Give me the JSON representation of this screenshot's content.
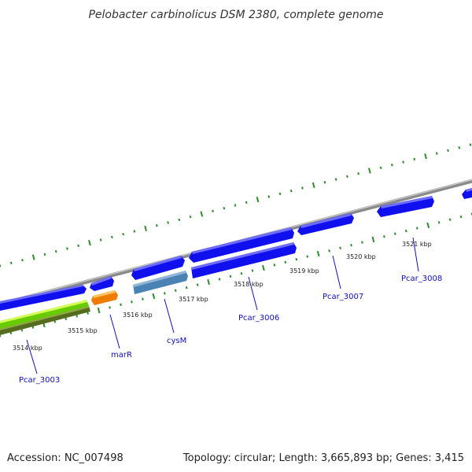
{
  "title": "Pelobacter carbinolicus DSM 2380, complete genome",
  "footer": {
    "accession": "Accession: NC_007498",
    "topology": "Topology: circular; Length: 3,665,893 bp; Genes: 3,415"
  },
  "colors": {
    "backbone": "#8a8a8a",
    "tick_green": "#2e8b2e",
    "gene_blue": "#1010ee",
    "gene_blue_top": "#6c6cff",
    "gene_steel": "#4a82b4",
    "gene_steel_top": "#8fb6d8",
    "gene_orange": "#ee7c00",
    "gene_orange_top": "#ffc060",
    "gene_lime": "#66cc00",
    "gene_lime_top": "#d6ff5a",
    "gene_olive": "#556b1e",
    "gene_olive_top": "#8fa844",
    "label_color": "#1010bb"
  },
  "kbp_labels": [
    "3514 kbp",
    "3515 kbp",
    "3516 kbp",
    "3517 kbp",
    "3518 kbp",
    "3519 kbp",
    "3520 kbp",
    "3521 kbp"
  ],
  "gene_labels": [
    "Pcar_3003",
    "marR",
    "cysM",
    "Pcar_3006",
    "Pcar_3007",
    "Pcar_3008"
  ]
}
